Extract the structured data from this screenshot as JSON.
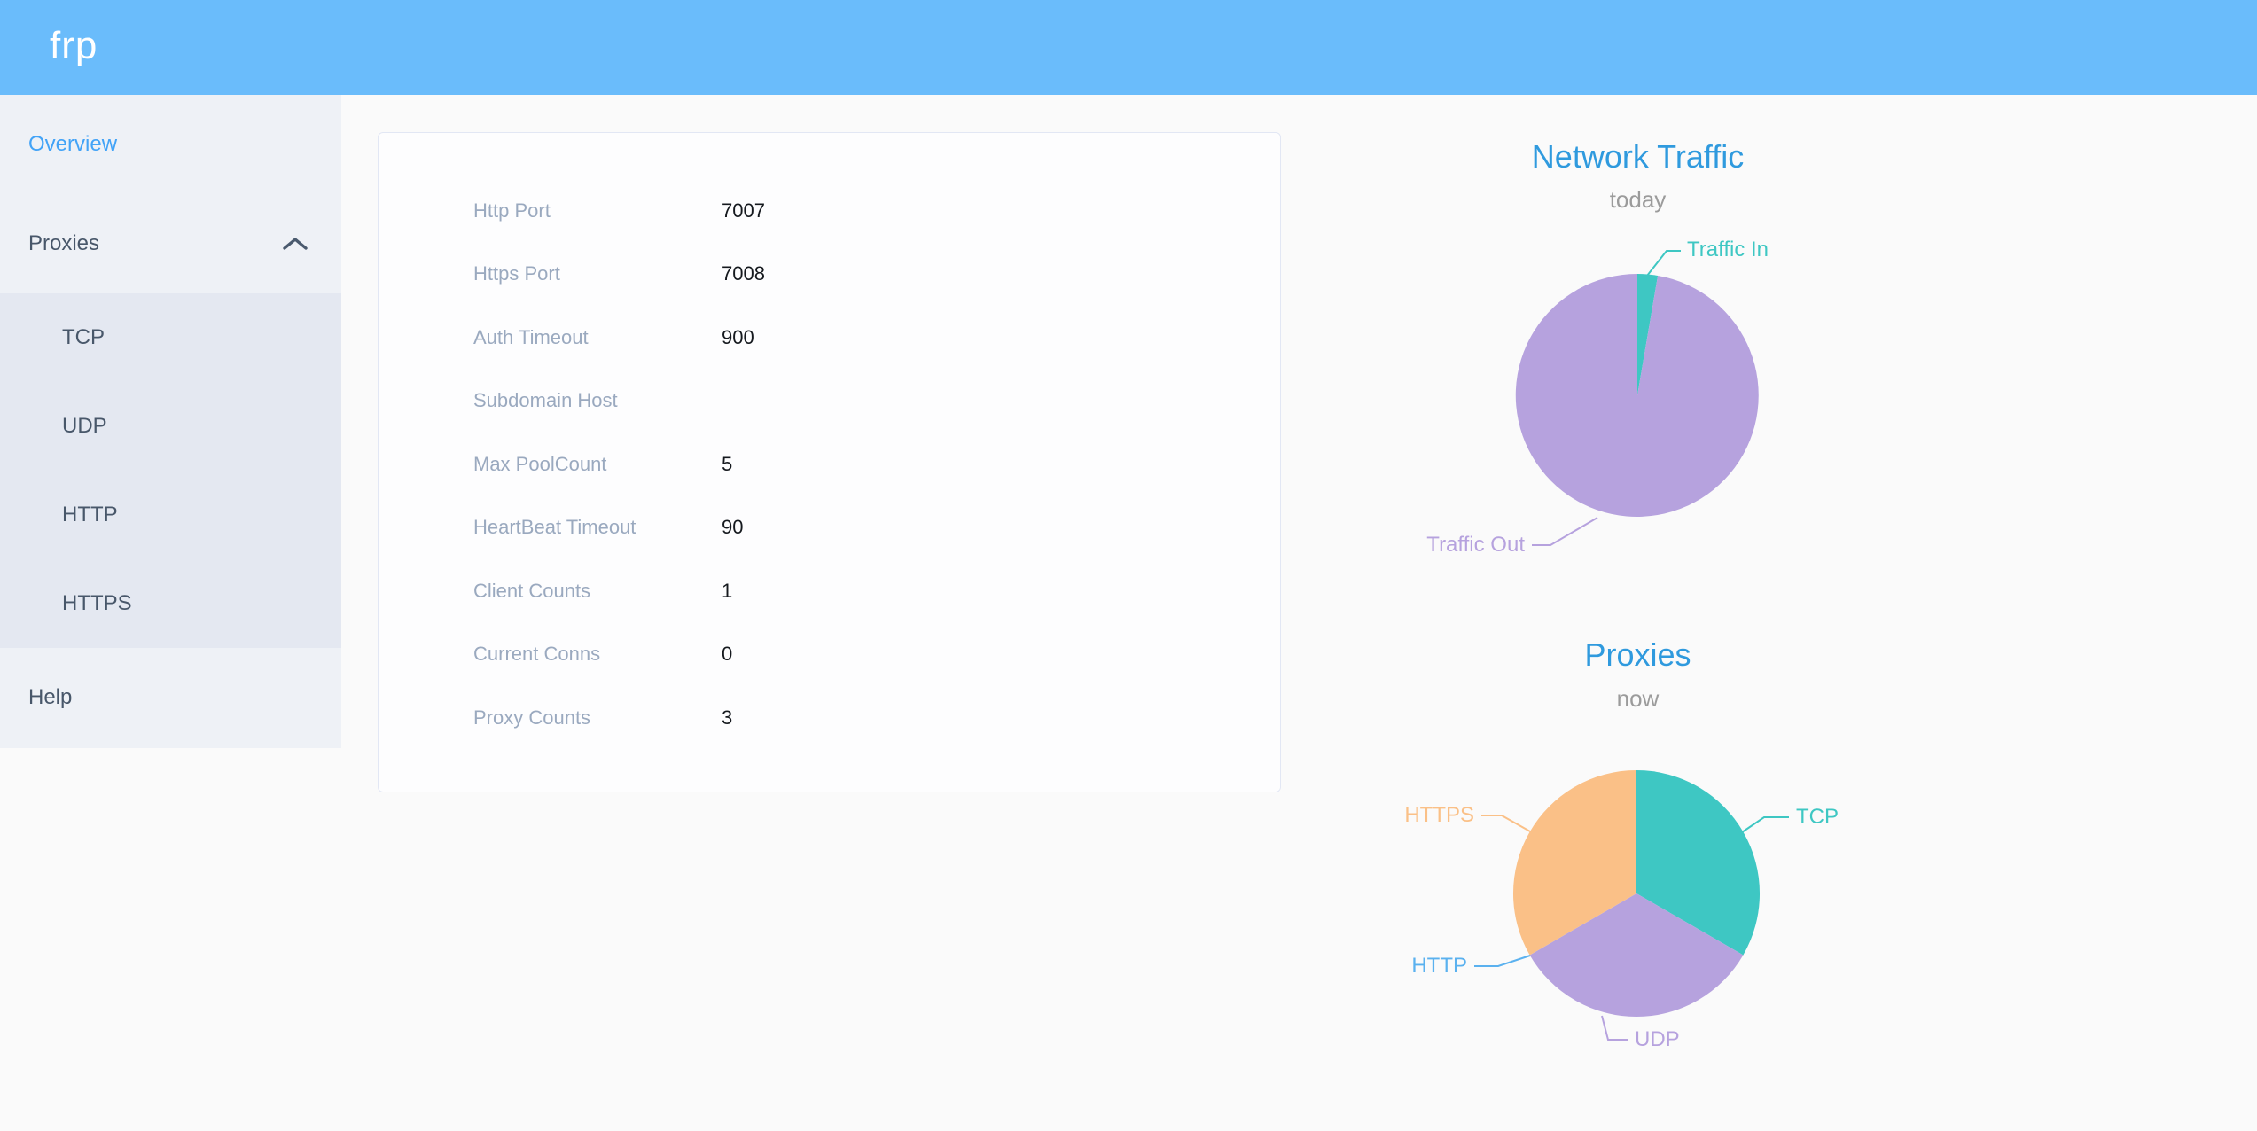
{
  "header": {
    "logo": "frp"
  },
  "sidebar": {
    "overview_label": "Overview",
    "proxies_label": "Proxies",
    "help_label": "Help",
    "proxy_types": {
      "tcp": "TCP",
      "udp": "UDP",
      "http": "HTTP",
      "https": "HTTPS"
    },
    "active_item": "Overview",
    "proxies_expanded": true
  },
  "overview_card": {
    "rows": [
      {
        "label": "Http Port",
        "value": "7007"
      },
      {
        "label": "Https Port",
        "value": "7008"
      },
      {
        "label": "Auth Timeout",
        "value": "900"
      },
      {
        "label": "Subdomain Host",
        "value": ""
      },
      {
        "label": "Max PoolCount",
        "value": "5"
      },
      {
        "label": "HeartBeat Timeout",
        "value": "90"
      },
      {
        "label": "Client Counts",
        "value": "1"
      },
      {
        "label": "Current Conns",
        "value": "0"
      },
      {
        "label": "Proxy Counts",
        "value": "3"
      }
    ]
  },
  "chart_data": [
    {
      "type": "pie",
      "title": "Network Traffic",
      "subtitle": "today",
      "unit": "percent of today's traffic",
      "legend_position": "connector-labels",
      "slices": [
        {
          "label": "Traffic In",
          "value": 2.7,
          "color": "#3ec7c3"
        },
        {
          "label": "Traffic Out",
          "value": 97.3,
          "color": "#b6a2de"
        }
      ]
    },
    {
      "type": "pie",
      "title": "Proxies",
      "subtitle": "now",
      "unit": "proxy count",
      "legend_position": "connector-labels",
      "slices": [
        {
          "label": "TCP",
          "value": 1,
          "color": "#3ec7c3"
        },
        {
          "label": "UDP",
          "value": 1,
          "color": "#b6a2de"
        },
        {
          "label": "HTTP",
          "value": 0,
          "color": "#5ab1ef"
        },
        {
          "label": "HTTPS",
          "value": 1,
          "color": "#fac087"
        }
      ]
    }
  ],
  "colors": {
    "header_bg": "#6abcfb",
    "sidebar_bg": "#eef1f6",
    "submenu_bg": "#e4e8f1",
    "sidebar_text": "#48576a",
    "sidebar_active": "#42a3f7",
    "chart_title": "#2f9ade",
    "card_label": "#9aa9bf",
    "teal": "#3ec7c3",
    "purple": "#b6a2de",
    "orange": "#fac087",
    "blue": "#5ab1ef"
  }
}
